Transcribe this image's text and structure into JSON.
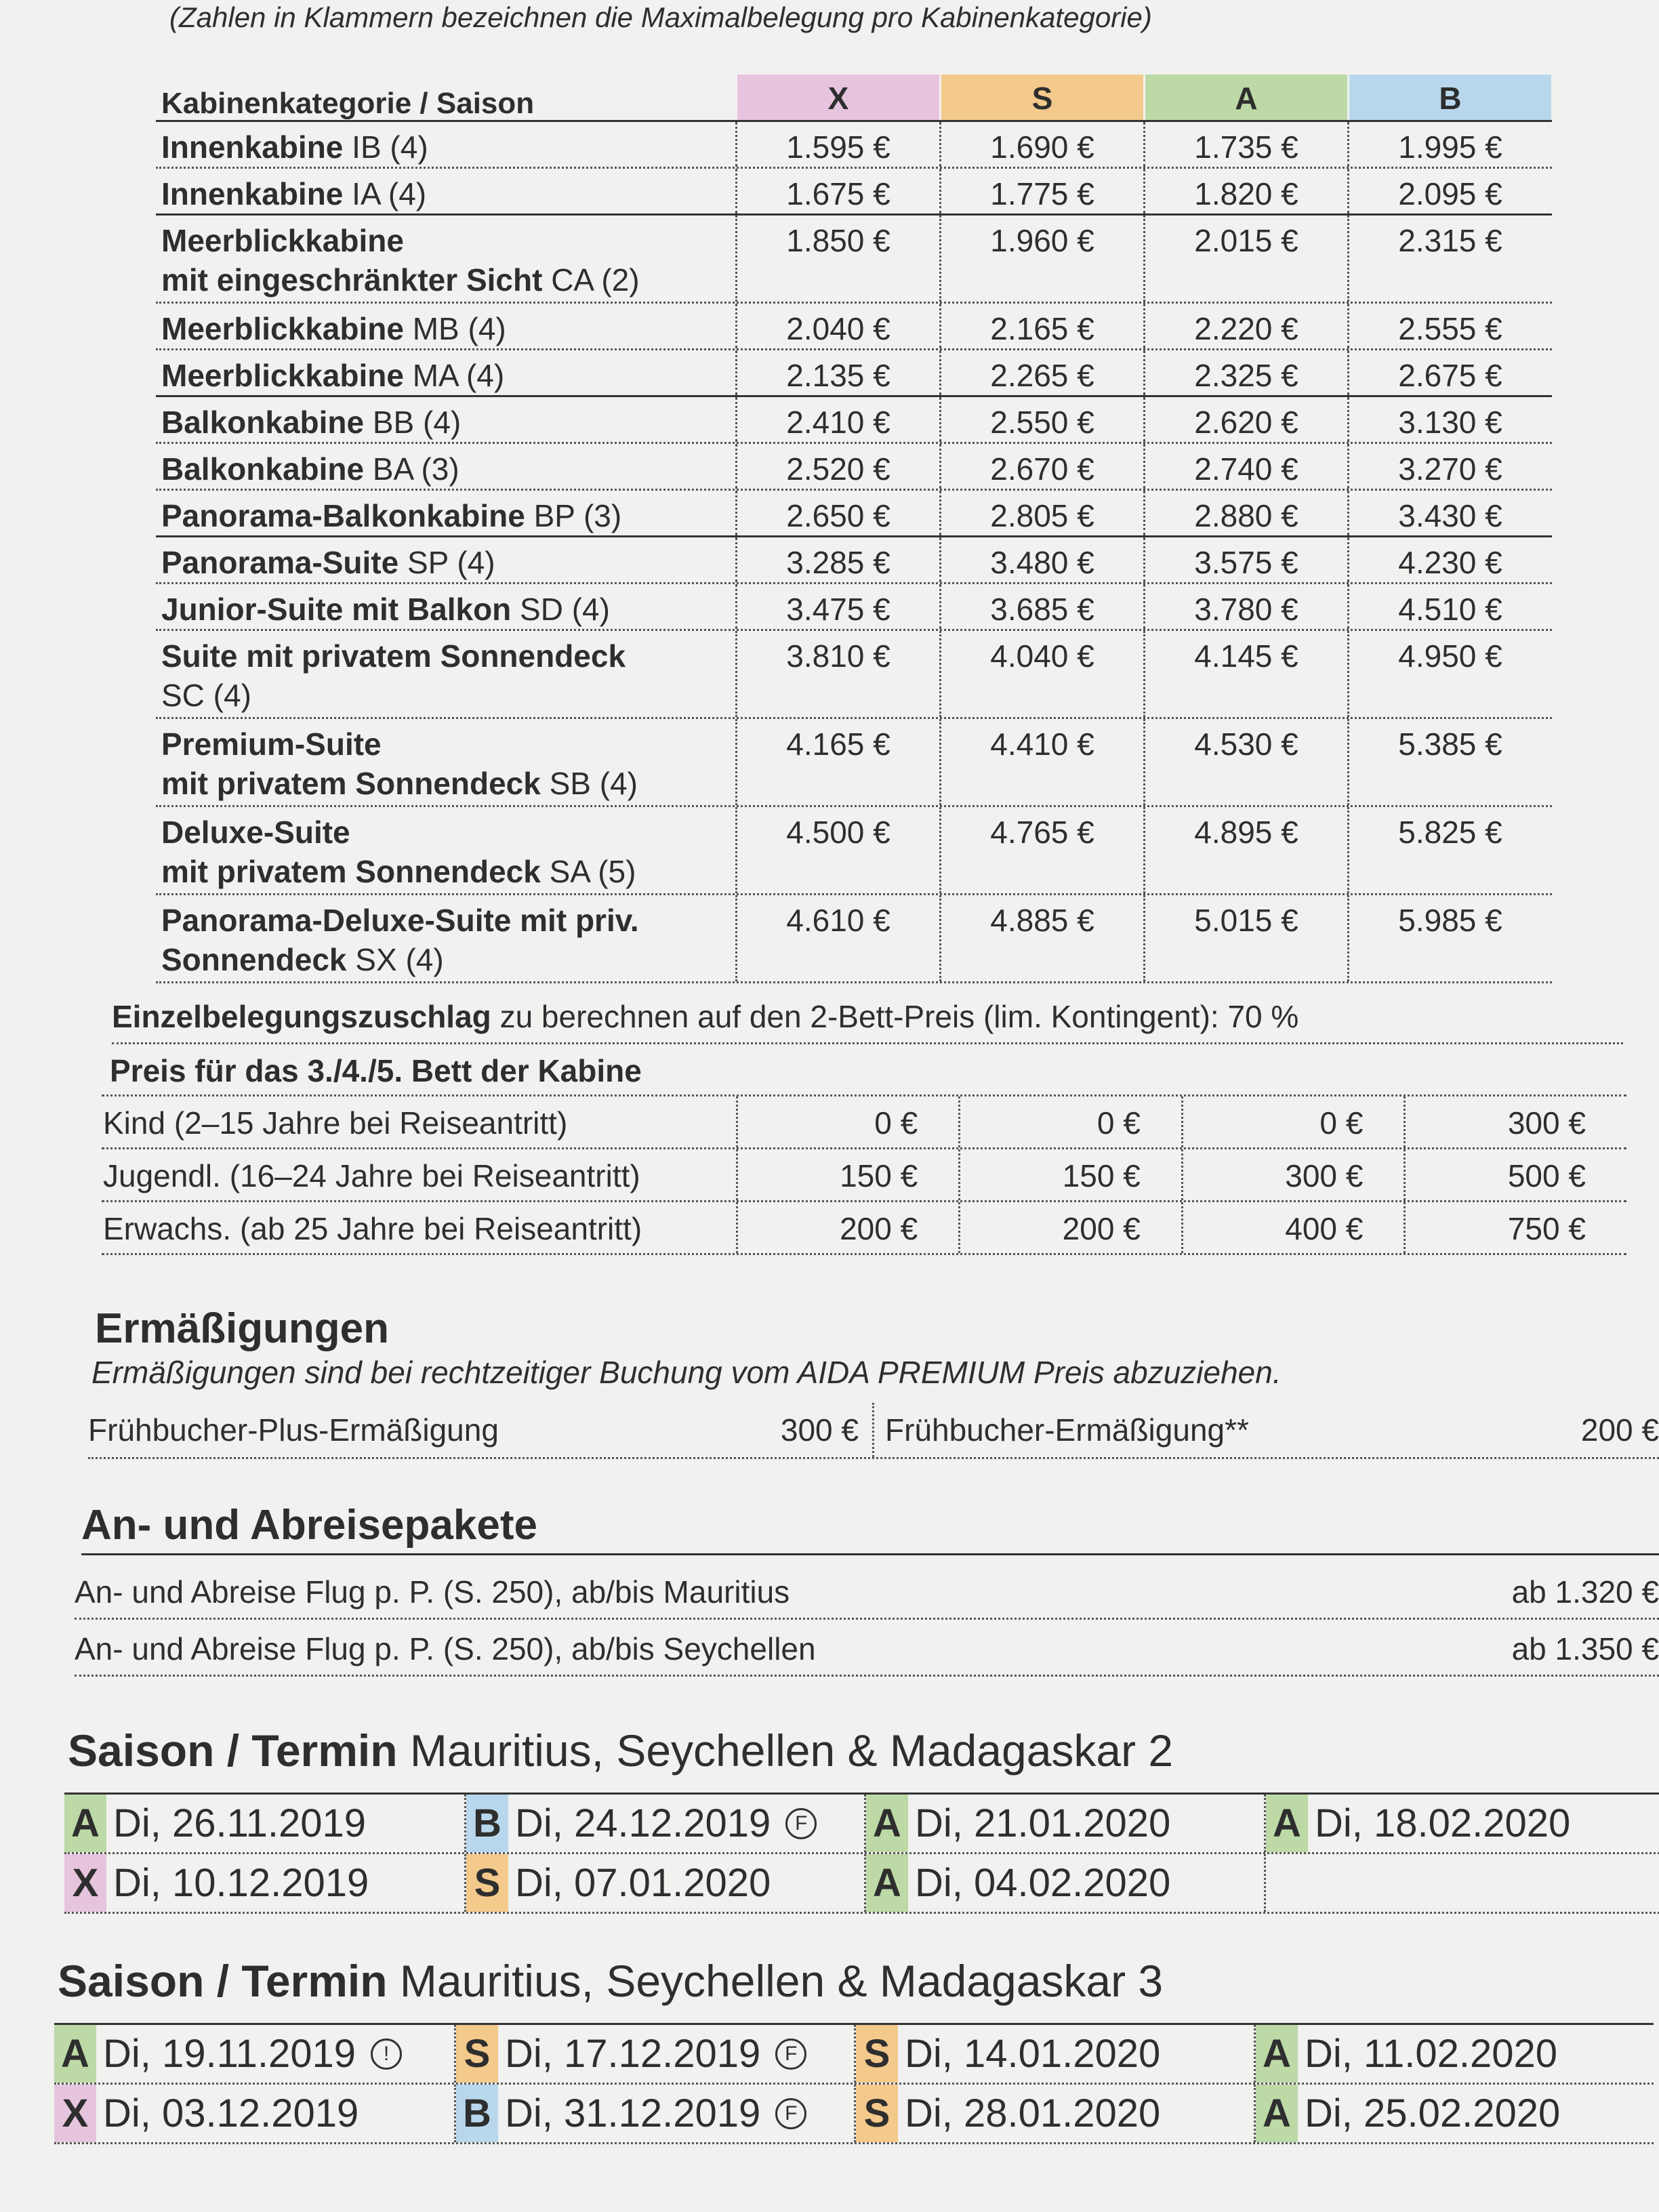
{
  "header": {
    "note": "(Zahlen in Klammern bezeichnen die Maximalbelegung pro Kabinenkategorie)"
  },
  "season_colors": {
    "X": "#e6c4de",
    "S": "#f3c98c",
    "A": "#bcd9a6",
    "B": "#b8d7ec"
  },
  "table": {
    "corner": "Kabinenkategorie / Saison",
    "seasons": [
      "X",
      "S",
      "A",
      "B"
    ],
    "rows": [
      {
        "lines": [
          {
            "bold": "Innenkabine",
            "text": "IB (4)"
          }
        ],
        "prices": [
          "1.595 €",
          "1.690 €",
          "1.735 €",
          "1.995 €"
        ]
      },
      {
        "lines": [
          {
            "bold": "Innenkabine",
            "text": "IA (4)"
          }
        ],
        "prices": [
          "1.675 €",
          "1.775 €",
          "1.820 €",
          "2.095 €"
        ]
      },
      {
        "lines": [
          {
            "bold": "Meerblickkabine"
          },
          {
            "bold": "mit eingeschränkter Sicht",
            "text": "CA (2)"
          }
        ],
        "prices": [
          "1.850 €",
          "1.960 €",
          "2.015 €",
          "2.315 €"
        ]
      },
      {
        "lines": [
          {
            "bold": "Meerblickkabine",
            "text": "MB (4)"
          }
        ],
        "prices": [
          "2.040 €",
          "2.165 €",
          "2.220 €",
          "2.555 €"
        ]
      },
      {
        "lines": [
          {
            "bold": "Meerblickkabine",
            "text": "MA (4)"
          }
        ],
        "prices": [
          "2.135 €",
          "2.265 €",
          "2.325 €",
          "2.675 €"
        ]
      },
      {
        "lines": [
          {
            "bold": "Balkonkabine",
            "text": "BB (4)"
          }
        ],
        "prices": [
          "2.410 €",
          "2.550 €",
          "2.620 €",
          "3.130 €"
        ]
      },
      {
        "lines": [
          {
            "bold": "Balkonkabine",
            "text": "BA (3)"
          }
        ],
        "prices": [
          "2.520 €",
          "2.670 €",
          "2.740 €",
          "3.270 €"
        ]
      },
      {
        "lines": [
          {
            "bold": "Panorama-Balkonkabine",
            "text": "BP (3)"
          }
        ],
        "prices": [
          "2.650 €",
          "2.805 €",
          "2.880 €",
          "3.430 €"
        ]
      },
      {
        "lines": [
          {
            "bold": "Panorama-Suite",
            "text": "SP (4)"
          }
        ],
        "prices": [
          "3.285 €",
          "3.480 €",
          "3.575 €",
          "4.230 €"
        ]
      },
      {
        "lines": [
          {
            "bold": "Junior-Suite mit Balkon",
            "text": "SD (4)"
          }
        ],
        "prices": [
          "3.475 €",
          "3.685 €",
          "3.780 €",
          "4.510 €"
        ]
      },
      {
        "lines": [
          {
            "bold": "Suite mit privatem Sonnendeck"
          },
          {
            "text": "SC (4)"
          }
        ],
        "prices": [
          "3.810 €",
          "4.040 €",
          "4.145 €",
          "4.950 €"
        ]
      },
      {
        "lines": [
          {
            "bold": "Premium-Suite"
          },
          {
            "bold": "mit privatem Sonnendeck",
            "text": "SB (4)"
          }
        ],
        "prices": [
          "4.165 €",
          "4.410 €",
          "4.530 €",
          "5.385 €"
        ]
      },
      {
        "lines": [
          {
            "bold": "Deluxe-Suite"
          },
          {
            "bold": "mit privatem Sonnendeck",
            "text": "SA (5)"
          }
        ],
        "prices": [
          "4.500 €",
          "4.765 €",
          "4.895 €",
          "5.825 €"
        ]
      },
      {
        "lines": [
          {
            "bold": "Panorama-Deluxe-Suite mit priv."
          },
          {
            "bold": "Sonnendeck",
            "text": "SX (4)"
          }
        ],
        "prices": [
          "4.610 €",
          "4.885 €",
          "5.015 €",
          "5.985 €"
        ]
      }
    ]
  },
  "single": {
    "bold": "Einzelbelegungszuschlag",
    "text": "zu berechnen auf den 2-Bett-Preis (lim. Kontingent): 70 %"
  },
  "extra_bed": {
    "title": "Preis für das 3./4./5. Bett der Kabine",
    "rows": [
      {
        "label": "Kind (2–15 Jahre bei Reiseantritt)",
        "prices": [
          "0 €",
          "0 €",
          "0 €",
          "300 €"
        ]
      },
      {
        "label": "Jugendl. (16–24 Jahre bei Reiseantritt)",
        "prices": [
          "150 €",
          "150 €",
          "300 €",
          "500 €"
        ]
      },
      {
        "label": "Erwachs. (ab 25 Jahre bei Reiseantritt)",
        "prices": [
          "200 €",
          "200 €",
          "400 €",
          "750 €"
        ]
      }
    ]
  },
  "discounts": {
    "title": "Ermäßigungen",
    "note": "Ermäßigungen sind bei rechtzeitiger Buchung vom AIDA PREMIUM Preis abzuziehen.",
    "items": [
      {
        "label": "Frühbucher-Plus-Ermäßigung",
        "price": "300 €"
      },
      {
        "label": "Frühbucher-Ermäßigung**",
        "price": "200 €"
      }
    ]
  },
  "packages": {
    "title": "An- und Abreisepakete",
    "rows": [
      {
        "label": "An- und Abreise Flug p. P. (S. 250), ab/bis Mauritius",
        "price": "ab 1.320 €"
      },
      {
        "label": "An- und Abreise Flug p. P. (S. 250), ab/bis Seychellen",
        "price": "ab 1.350 €"
      }
    ]
  },
  "schedules": [
    {
      "title": "Saison / Termin",
      "route": "Mauritius, Seychellen & Madagaskar 2",
      "rows": [
        [
          {
            "season": "A",
            "date": "Di, 26.11.2019"
          },
          {
            "season": "B",
            "date": "Di, 24.12.2019",
            "mark": "F"
          },
          {
            "season": "A",
            "date": "Di, 21.01.2020"
          },
          {
            "season": "A",
            "date": "Di, 18.02.2020"
          }
        ],
        [
          {
            "season": "X",
            "date": "Di, 10.12.2019"
          },
          {
            "season": "S",
            "date": "Di, 07.01.2020"
          },
          {
            "season": "A",
            "date": "Di, 04.02.2020"
          }
        ]
      ]
    },
    {
      "title": "Saison / Termin",
      "route": "Mauritius, Seychellen & Madagaskar 3",
      "rows": [
        [
          {
            "season": "A",
            "date": "Di, 19.11.2019",
            "mark": "!"
          },
          {
            "season": "S",
            "date": "Di, 17.12.2019",
            "mark": "F"
          },
          {
            "season": "S",
            "date": "Di, 14.01.2020"
          },
          {
            "season": "A",
            "date": "Di, 11.02.2020"
          }
        ],
        [
          {
            "season": "X",
            "date": "Di, 03.12.2019"
          },
          {
            "season": "B",
            "date": "Di, 31.12.2019",
            "mark": "F"
          },
          {
            "season": "S",
            "date": "Di, 28.01.2020"
          },
          {
            "season": "A",
            "date": "Di, 25.02.2020"
          }
        ]
      ]
    }
  ]
}
